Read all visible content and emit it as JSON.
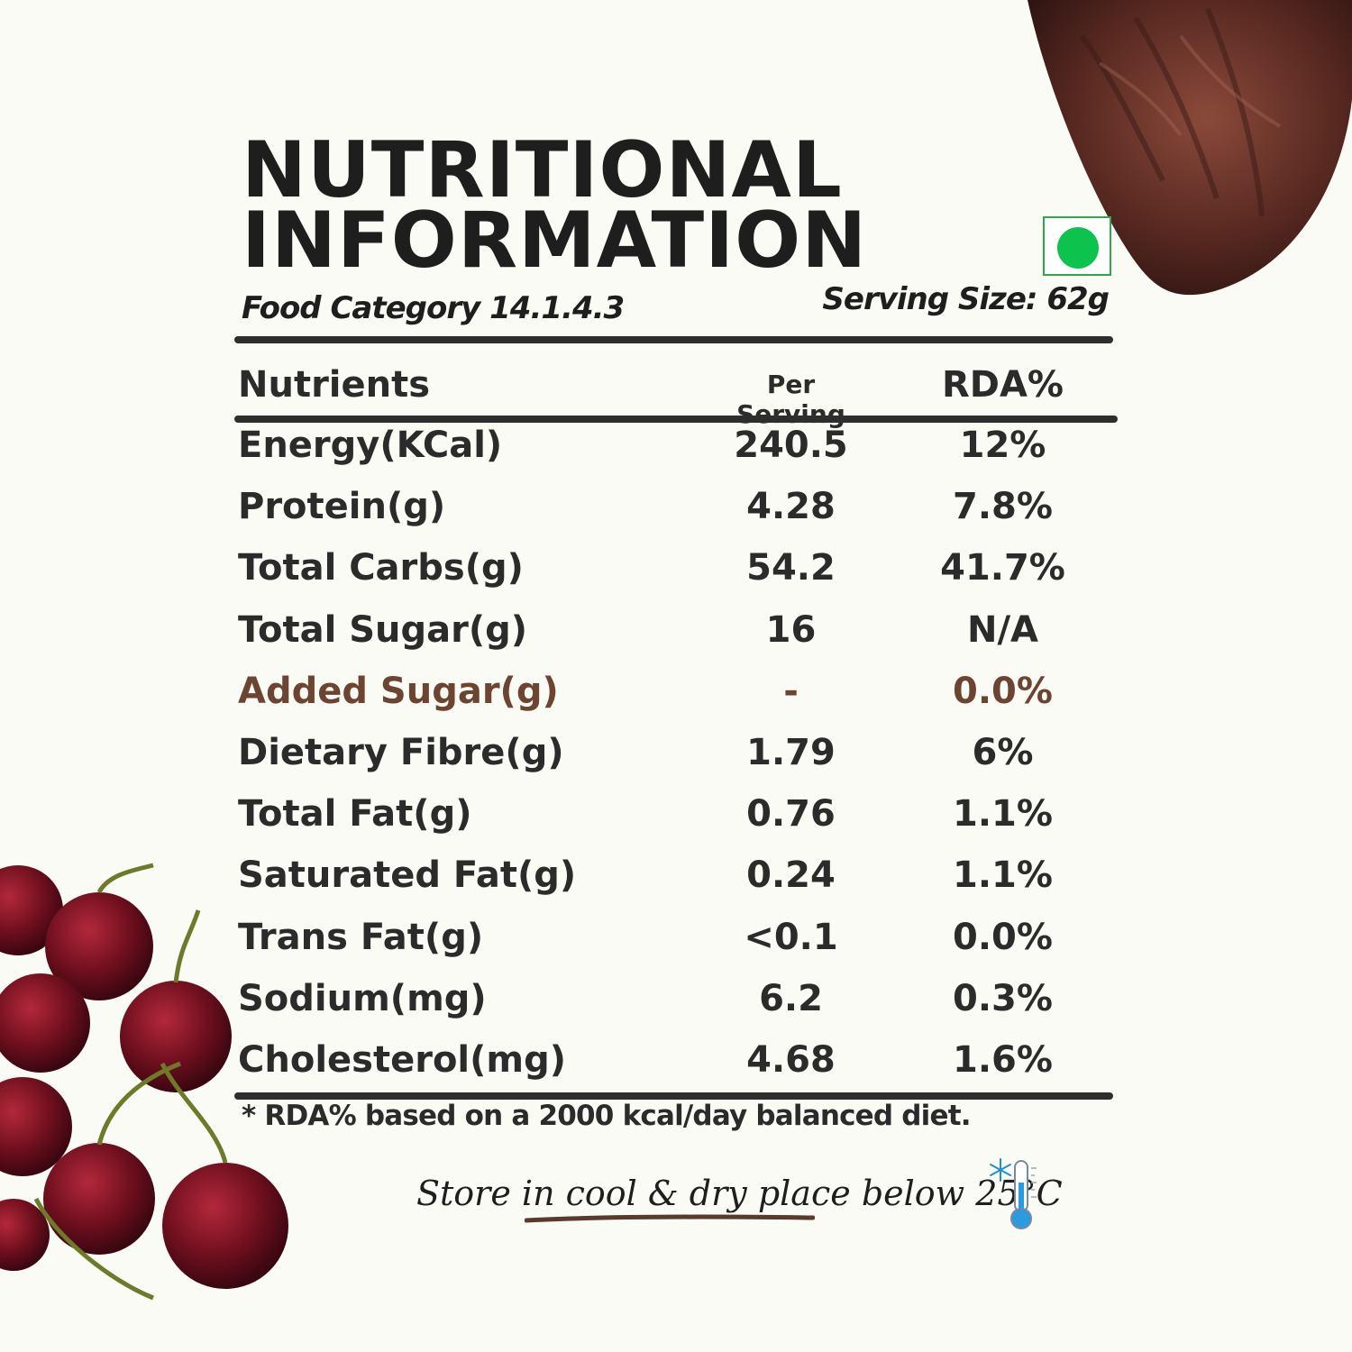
{
  "title": {
    "line1": "NUTRITIONAL",
    "line2": "INFORMATION"
  },
  "food_category": "Food Category 14.1.4.3",
  "serving_size": "Serving Size: 62g",
  "table": {
    "headers": {
      "nutrient": "Nutrients",
      "per_serving": "Per Serving",
      "rda": "RDA%"
    },
    "rows": [
      {
        "nutrient": "Energy(KCal)",
        "per_serving": "240.5",
        "rda": "12%"
      },
      {
        "nutrient": "Protein(g)",
        "per_serving": "4.28",
        "rda": "7.8%"
      },
      {
        "nutrient": "Total Carbs(g)",
        "per_serving": "54.2",
        "rda": "41.7%"
      },
      {
        "nutrient": "Total Sugar(g)",
        "per_serving": "16",
        "rda": "N/A"
      },
      {
        "nutrient": "Added Sugar(g)",
        "per_serving": "-",
        "rda": "0.0%"
      },
      {
        "nutrient": "Dietary Fibre(g)",
        "per_serving": "1.79",
        "rda": "6%"
      },
      {
        "nutrient": "Total Fat(g)",
        "per_serving": "0.76",
        "rda": "1.1%"
      },
      {
        "nutrient": "Saturated Fat(g)",
        "per_serving": "0.24",
        "rda": "1.1%"
      },
      {
        "nutrient": "Trans Fat(g)",
        "per_serving": "<0.1",
        "rda": "0.0%"
      },
      {
        "nutrient": "Sodium(mg)",
        "per_serving": "6.2",
        "rda": "0.3%"
      },
      {
        "nutrient": "Cholesterol(mg)",
        "per_serving": "4.68",
        "rda": "1.6%"
      }
    ]
  },
  "footnote": "* RDA% based on a 2000 kcal/day balanced diet.",
  "storage": "Store in cool & dry place below 25°C",
  "colors": {
    "veg_mark": "#0ec24e",
    "highlight_row": "#6b4532",
    "text": "#2b2b2b",
    "background": "#fbfbf6"
  },
  "icons": [
    "veg-symbol-icon",
    "thermometer-snowflake-icon"
  ]
}
